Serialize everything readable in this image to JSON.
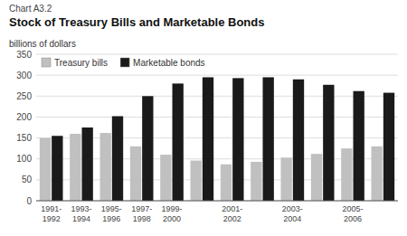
{
  "chart_data": {
    "type": "bar",
    "subtitle": "Chart A3.2",
    "title": "Stock of Treasury Bills and Marketable Bonds",
    "ylabel": "billions of dollars",
    "categories": [
      "1991-\n1992",
      "1993-\n1994",
      "1995-\n1996",
      "1997-\n1998",
      "1999-\n2000",
      null,
      "2001-\n2002",
      null,
      "2003-\n2004",
      null,
      "2005-\n2006",
      null
    ],
    "series": [
      {
        "name": "Treasury bills",
        "color": "#c0c0c0",
        "values": [
          150,
          160,
          162,
          130,
          110,
          96,
          87,
          93,
          103,
          112,
          125,
          130
        ]
      },
      {
        "name": "Marketable bonds",
        "color": "#1a1a1a",
        "values": [
          155,
          175,
          202,
          250,
          280,
          295,
          293,
          295,
          290,
          277,
          262,
          258
        ]
      }
    ],
    "ylim": [
      0,
      350
    ],
    "yticks": [
      0,
      50,
      100,
      150,
      200,
      250,
      300,
      350
    ],
    "grid": true,
    "legend": "upper left"
  }
}
